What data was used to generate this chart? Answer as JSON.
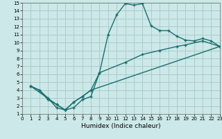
{
  "xlabel": "Humidex (Indice chaleur)",
  "bg_color": "#cce8e8",
  "grid_color": "#aacccc",
  "line_color": "#1a6e6e",
  "xlim": [
    0,
    23
  ],
  "ylim": [
    1,
    15
  ],
  "xticks": [
    0,
    1,
    2,
    3,
    4,
    5,
    6,
    7,
    8,
    9,
    10,
    11,
    12,
    13,
    14,
    15,
    16,
    17,
    18,
    19,
    20,
    21,
    22,
    23
  ],
  "yticks": [
    1,
    2,
    3,
    4,
    5,
    6,
    7,
    8,
    9,
    10,
    11,
    12,
    13,
    14,
    15
  ],
  "line1_x": [
    1,
    2,
    3,
    4,
    5,
    6,
    7,
    8,
    9,
    10,
    11,
    12,
    13,
    14,
    15,
    16,
    17,
    18,
    19,
    20,
    21,
    22,
    23
  ],
  "line1_y": [
    4.5,
    4.0,
    3.0,
    1.8,
    1.5,
    1.8,
    2.8,
    3.2,
    6.2,
    11.0,
    13.5,
    14.9,
    14.7,
    14.9,
    12.1,
    11.5,
    11.5,
    10.8,
    10.3,
    10.2,
    10.5,
    10.2,
    9.5
  ],
  "line2_x": [
    1,
    2,
    3,
    4,
    5,
    6,
    7,
    8,
    9,
    12,
    14,
    16,
    18,
    19,
    21,
    23
  ],
  "line2_y": [
    4.5,
    4.0,
    2.8,
    2.2,
    1.5,
    2.5,
    3.2,
    4.0,
    6.2,
    7.5,
    8.5,
    9.0,
    9.5,
    9.7,
    10.2,
    9.5
  ],
  "line3_x": [
    1,
    4,
    5,
    6,
    7,
    8,
    23
  ],
  "line3_y": [
    4.5,
    2.2,
    1.5,
    2.5,
    3.2,
    4.0,
    9.5
  ]
}
